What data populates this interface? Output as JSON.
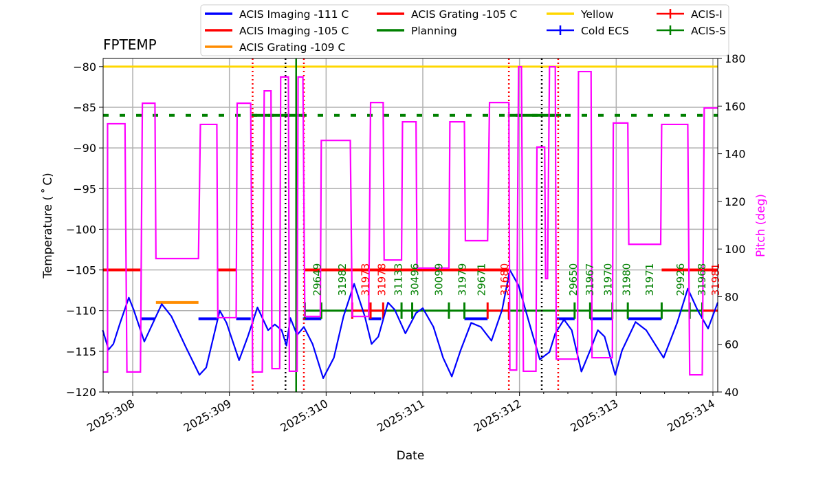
{
  "chart_data": {
    "type": "line",
    "title": "FPTEMP",
    "xlabel": "Date",
    "ylabel": "Temperature ($^\\circ$C)",
    "ylabel_display": "Temperature ( ˚ C)",
    "y2label": "Pitch (deg)",
    "xlim": [
      307.694,
      314.05
    ],
    "ylim": [
      -120,
      -79
    ],
    "y2lim": [
      40,
      180
    ],
    "x_ticks": [
      308,
      309,
      310,
      311,
      312,
      313,
      314
    ],
    "x_tick_labels": [
      "2025:308",
      "2025:309",
      "2025:310",
      "2025:311",
      "2025:312",
      "2025:313",
      "2025:314"
    ],
    "y_ticks": [
      -80,
      -85,
      -90,
      -95,
      -100,
      -105,
      -110,
      -115,
      -120
    ],
    "y_tick_labels": [
      "−80",
      "−85",
      "−90",
      "−95",
      "−100",
      "−105",
      "−110",
      "−115",
      "−120"
    ],
    "y2_ticks": [
      40,
      60,
      80,
      100,
      120,
      140,
      160,
      180
    ],
    "y2_tick_labels": [
      "40",
      "60",
      "80",
      "100",
      "120",
      "140",
      "160",
      "180"
    ],
    "grid": true,
    "legend_placement": "top",
    "colors": {
      "temp": "#0000ff",
      "pitch": "#ff00ff",
      "red": "#ff0000",
      "orange": "#ff8c00",
      "green": "#008000",
      "yellow": "#ffd700"
    },
    "legend": [
      {
        "label": "ACIS Imaging -111 C",
        "color": "#0000ff",
        "kind": "line"
      },
      {
        "label": "ACIS Imaging -105 C",
        "color": "#ff0000",
        "kind": "line"
      },
      {
        "label": "ACIS Grating -109 C",
        "color": "#ff8c00",
        "kind": "line"
      },
      {
        "label": "ACIS Grating -105 C",
        "color": "#ff0000",
        "kind": "line"
      },
      {
        "label": "Planning",
        "color": "#008000",
        "kind": "line"
      },
      {
        "label": "Yellow",
        "color": "#ffd700",
        "kind": "line"
      },
      {
        "label": "Cold ECS",
        "color": "#0000ff",
        "kind": "err"
      },
      {
        "label": "ACIS-I",
        "color": "#ff0000",
        "kind": "err"
      },
      {
        "label": "ACIS-S",
        "color": "#008000",
        "kind": "err"
      }
    ],
    "temperature": [
      [
        307.69,
        -112.4
      ],
      [
        307.75,
        -114.8
      ],
      [
        307.8,
        -114.1
      ],
      [
        307.87,
        -111.5
      ],
      [
        307.96,
        -108.4
      ],
      [
        308.01,
        -109.9
      ],
      [
        308.12,
        -113.8
      ],
      [
        308.21,
        -111.5
      ],
      [
        308.3,
        -109.2
      ],
      [
        308.4,
        -110.7
      ],
      [
        308.55,
        -114.5
      ],
      [
        308.69,
        -117.9
      ],
      [
        308.76,
        -117.0
      ],
      [
        308.9,
        -110.0
      ],
      [
        308.97,
        -111.5
      ],
      [
        309.1,
        -116.1
      ],
      [
        309.19,
        -113.2
      ],
      [
        309.29,
        -109.6
      ],
      [
        309.4,
        -112.4
      ],
      [
        309.47,
        -111.7
      ],
      [
        309.54,
        -112.4
      ],
      [
        309.59,
        -114.3
      ],
      [
        309.63,
        -110.9
      ],
      [
        309.7,
        -113.0
      ],
      [
        309.77,
        -112.0
      ],
      [
        309.86,
        -114.1
      ],
      [
        309.97,
        -118.3
      ],
      [
        310.08,
        -115.8
      ],
      [
        310.18,
        -110.7
      ],
      [
        310.29,
        -106.7
      ],
      [
        310.4,
        -110.7
      ],
      [
        310.47,
        -114.1
      ],
      [
        310.54,
        -113.2
      ],
      [
        310.64,
        -109.0
      ],
      [
        310.71,
        -109.9
      ],
      [
        310.82,
        -112.8
      ],
      [
        310.93,
        -110.3
      ],
      [
        311.0,
        -109.7
      ],
      [
        311.11,
        -112.0
      ],
      [
        311.21,
        -115.8
      ],
      [
        311.3,
        -118.1
      ],
      [
        311.39,
        -114.9
      ],
      [
        311.5,
        -111.5
      ],
      [
        311.6,
        -112.0
      ],
      [
        311.71,
        -113.7
      ],
      [
        311.82,
        -109.9
      ],
      [
        311.9,
        -105.0
      ],
      [
        311.99,
        -106.9
      ],
      [
        312.1,
        -111.5
      ],
      [
        312.21,
        -116.0
      ],
      [
        312.31,
        -115.1
      ],
      [
        312.37,
        -112.8
      ],
      [
        312.46,
        -111.1
      ],
      [
        312.54,
        -112.4
      ],
      [
        312.64,
        -117.5
      ],
      [
        312.73,
        -114.9
      ],
      [
        312.81,
        -112.4
      ],
      [
        312.88,
        -113.2
      ],
      [
        312.99,
        -117.9
      ],
      [
        313.06,
        -114.9
      ],
      [
        313.2,
        -111.4
      ],
      [
        313.31,
        -112.4
      ],
      [
        313.49,
        -115.8
      ],
      [
        313.63,
        -111.5
      ],
      [
        313.74,
        -107.3
      ],
      [
        313.84,
        -109.9
      ],
      [
        313.95,
        -112.2
      ],
      [
        314.05,
        -109.0
      ]
    ],
    "pitch_segments": [
      [
        307.69,
        307.74,
        48.4
      ],
      [
        307.74,
        307.92,
        152.6
      ],
      [
        307.94,
        308.08,
        48.4
      ],
      [
        308.1,
        308.23,
        161.2
      ],
      [
        308.24,
        308.68,
        96.0
      ],
      [
        308.7,
        308.87,
        152.3
      ],
      [
        308.88,
        309.07,
        71.2
      ],
      [
        309.08,
        309.22,
        161.2
      ],
      [
        309.24,
        309.34,
        48.4
      ],
      [
        309.36,
        309.43,
        166.4
      ],
      [
        309.44,
        309.52,
        49.8
      ],
      [
        309.53,
        309.61,
        172.2
      ],
      [
        309.62,
        309.7,
        48.7
      ],
      [
        309.71,
        309.76,
        172.2
      ],
      [
        309.78,
        309.94,
        71.7
      ],
      [
        309.95,
        310.25,
        145.6
      ],
      [
        310.27,
        310.44,
        71.7
      ],
      [
        310.46,
        310.59,
        161.5
      ],
      [
        310.6,
        310.78,
        95.4
      ],
      [
        310.79,
        310.93,
        153.4
      ],
      [
        310.94,
        311.27,
        92.0
      ],
      [
        311.28,
        311.43,
        153.4
      ],
      [
        311.44,
        311.67,
        103.5
      ],
      [
        311.69,
        311.89,
        161.5
      ],
      [
        311.9,
        311.97,
        49.2
      ],
      [
        311.99,
        312.02,
        176.5
      ],
      [
        312.04,
        312.17,
        48.7
      ],
      [
        312.18,
        312.26,
        142.8
      ],
      [
        312.27,
        312.29,
        87.6
      ],
      [
        312.31,
        312.37,
        176.5
      ],
      [
        312.38,
        312.6,
        53.8
      ],
      [
        312.61,
        312.74,
        174.5
      ],
      [
        312.75,
        312.96,
        54.4
      ],
      [
        312.97,
        313.12,
        152.9
      ],
      [
        313.13,
        313.46,
        102.0
      ],
      [
        313.47,
        313.74,
        152.3
      ],
      [
        313.76,
        313.89,
        47.2
      ],
      [
        313.91,
        314.05,
        159.2
      ]
    ],
    "yellow_limit": -80,
    "planning_limit": -86,
    "planning_solid": [
      [
        309.24,
        309.78
      ],
      [
        311.88,
        312.43
      ]
    ],
    "imaging_105": [
      [
        307.69,
        308.08
      ],
      [
        308.87,
        309.07
      ],
      [
        309.78,
        311.89
      ],
      [
        313.47,
        314.05
      ]
    ],
    "imaging_111": [
      [
        308.08,
        308.23
      ],
      [
        308.68,
        308.87
      ],
      [
        309.07,
        309.22
      ],
      [
        309.76,
        309.95
      ],
      [
        310.44,
        310.57
      ],
      [
        311.43,
        311.67
      ],
      [
        312.38,
        312.57
      ],
      [
        312.73,
        312.96
      ],
      [
        313.12,
        313.47
      ]
    ],
    "grating_109": [
      [
        308.24,
        308.68
      ]
    ],
    "acis_s_level": -110,
    "acis_s_range": [
      309.78,
      314.05
    ],
    "acis_s_ticks": [
      309.78,
      309.95,
      310.78,
      310.89,
      311.27,
      311.43,
      312.57,
      312.73,
      312.96,
      313.12,
      313.47,
      313.76,
      313.89
    ],
    "acis_i_ranges": [
      [
        310.27,
        310.59
      ],
      [
        311.67,
        311.89
      ],
      [
        313.89,
        314.05
      ]
    ],
    "acis_i_ticks": [
      310.27,
      310.46,
      310.59,
      311.67,
      311.89
    ],
    "red_dotted": [
      309.24,
      309.77,
      311.89,
      312.4
    ],
    "black_dotted": [
      309.58,
      312.23
    ],
    "green_solid": [
      309.69
    ],
    "obsids": [
      {
        "id": "29649",
        "day": 309.9,
        "color": "#008000"
      },
      {
        "id": "31982",
        "day": 310.16,
        "color": "#008000"
      },
      {
        "id": "31973",
        "day": 310.4,
        "color": "#ff0000"
      },
      {
        "id": "31978",
        "day": 310.57,
        "color": "#ff0000"
      },
      {
        "id": "31133",
        "day": 310.74,
        "color": "#008000"
      },
      {
        "id": "30496",
        "day": 310.91,
        "color": "#008000"
      },
      {
        "id": "30099",
        "day": 311.16,
        "color": "#008000"
      },
      {
        "id": "31979",
        "day": 311.4,
        "color": "#008000"
      },
      {
        "id": "29671",
        "day": 311.6,
        "color": "#008000"
      },
      {
        "id": "31680",
        "day": 311.84,
        "color": "#ff0000"
      },
      {
        "id": "29650",
        "day": 312.55,
        "color": "#008000"
      },
      {
        "id": "31967",
        "day": 312.72,
        "color": "#008000"
      },
      {
        "id": "31970",
        "day": 312.91,
        "color": "#008000"
      },
      {
        "id": "31980",
        "day": 313.1,
        "color": "#008000"
      },
      {
        "id": "31971",
        "day": 313.34,
        "color": "#008000"
      },
      {
        "id": "29926",
        "day": 313.66,
        "color": "#008000"
      },
      {
        "id": "31968",
        "day": 313.88,
        "color": "#008000"
      },
      {
        "id": "31981",
        "day": 314.02,
        "color": "#ff0000"
      }
    ]
  }
}
